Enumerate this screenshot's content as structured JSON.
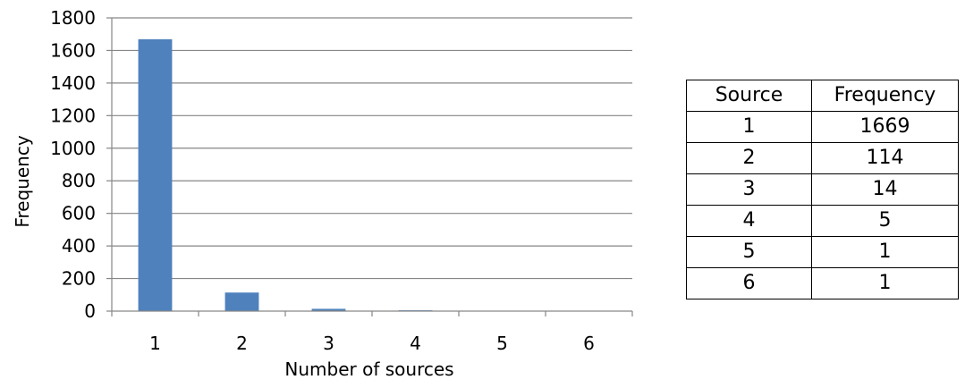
{
  "chart_data": {
    "type": "bar",
    "categories": [
      "1",
      "2",
      "3",
      "4",
      "5",
      "6"
    ],
    "values": [
      1669,
      114,
      14,
      5,
      1,
      1
    ],
    "title": "",
    "xlabel": "Number of sources",
    "ylabel": "Frequency",
    "ylim": [
      0,
      1800
    ],
    "yticks": [
      "0",
      "200",
      "400",
      "600",
      "800",
      "1000",
      "1200",
      "1400",
      "1600",
      "1800"
    ],
    "grid": true,
    "legend": "none",
    "bar_color": "#4f81bd"
  },
  "table": {
    "headers": [
      "Source",
      "Frequency"
    ],
    "rows": [
      [
        "1",
        "1669"
      ],
      [
        "2",
        "114"
      ],
      [
        "3",
        "14"
      ],
      [
        "4",
        "5"
      ],
      [
        "5",
        "1"
      ],
      [
        "6",
        "1"
      ]
    ]
  }
}
